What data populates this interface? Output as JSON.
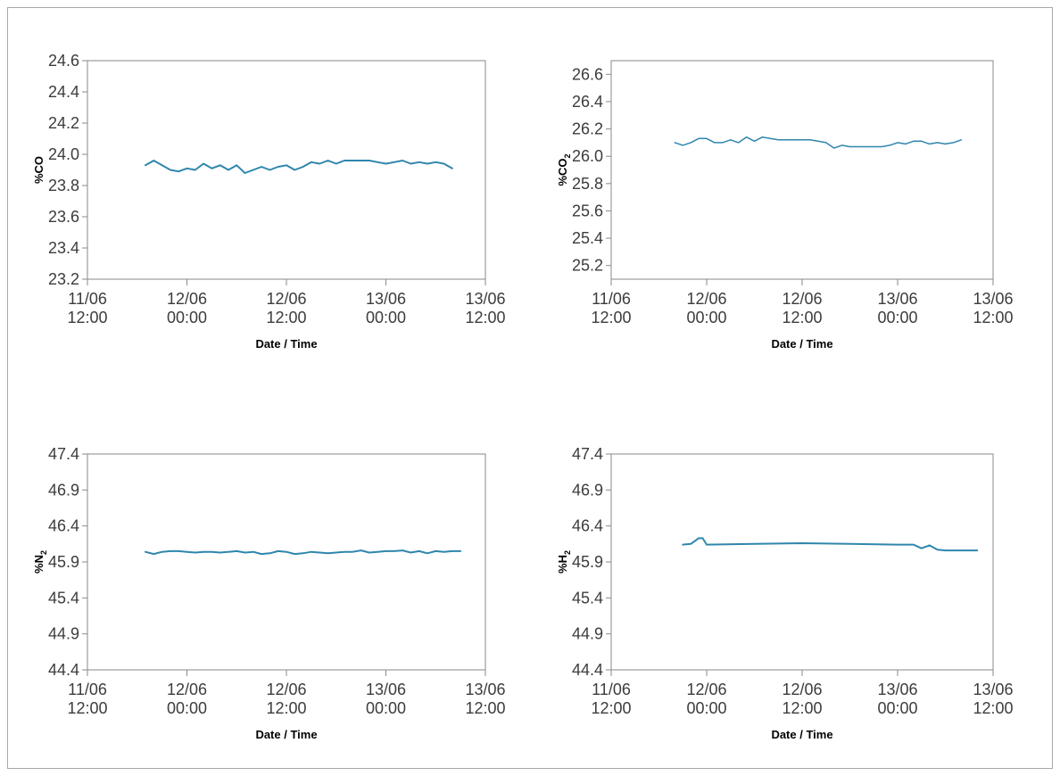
{
  "colors": {
    "line": "#2f86ad",
    "axis": "#8a8a8a",
    "frame": "#a8a8a8",
    "text": "#3c3c3c"
  },
  "chart_data": [
    {
      "type": "line",
      "xlabel": "Date / Time",
      "ylabel": {
        "base": "%CO",
        "sub": ""
      },
      "xlim": [
        "11/06 12:00",
        "13/06 12:00"
      ],
      "xticks": [
        {
          "date": "11/06",
          "time": "12:00"
        },
        {
          "date": "12/06",
          "time": "00:00"
        },
        {
          "date": "12/06",
          "time": "12:00"
        },
        {
          "date": "13/06",
          "time": "00:00"
        },
        {
          "date": "13/06",
          "time": "12:00"
        }
      ],
      "ylim": [
        23.2,
        24.6
      ],
      "yticks": [
        "23.2",
        "23.4",
        "23.6",
        "23.8",
        "24.0",
        "24.2",
        "24.4",
        "24.6"
      ],
      "stroke": 2,
      "series": [
        {
          "x": [
            "11/06 19:00",
            "11/06 20:00",
            "11/06 21:00",
            "11/06 22:00",
            "11/06 23:00",
            "12/06 00:00",
            "12/06 01:00",
            "12/06 02:00",
            "12/06 03:00",
            "12/06 04:00",
            "12/06 05:00",
            "12/06 06:00",
            "12/06 07:00",
            "12/06 08:00",
            "12/06 09:00",
            "12/06 10:00",
            "12/06 11:00",
            "12/06 12:00",
            "12/06 13:00",
            "12/06 14:00",
            "12/06 15:00",
            "12/06 16:00",
            "12/06 17:00",
            "12/06 18:00",
            "12/06 19:00",
            "12/06 20:00",
            "12/06 21:00",
            "12/06 22:00",
            "12/06 23:00",
            "13/06 00:00",
            "13/06 01:00",
            "13/06 02:00",
            "13/06 03:00",
            "13/06 04:00",
            "13/06 05:00",
            "13/06 06:00",
            "13/06 07:00",
            "13/06 08:00"
          ],
          "y": [
            23.93,
            23.96,
            23.93,
            23.9,
            23.89,
            23.91,
            23.9,
            23.94,
            23.91,
            23.93,
            23.9,
            23.93,
            23.88,
            23.9,
            23.92,
            23.9,
            23.92,
            23.93,
            23.9,
            23.92,
            23.95,
            23.94,
            23.96,
            23.94,
            23.96,
            23.96,
            23.96,
            23.96,
            23.95,
            23.94,
            23.95,
            23.96,
            23.94,
            23.95,
            23.94,
            23.95,
            23.94,
            23.91
          ]
        }
      ]
    },
    {
      "type": "line",
      "xlabel": "Date / Time",
      "ylabel": {
        "base": "%CO",
        "sub": "2"
      },
      "xlim": [
        "11/06 12:00",
        "13/06 12:00"
      ],
      "xticks": [
        {
          "date": "11/06",
          "time": "12:00"
        },
        {
          "date": "12/06",
          "time": "00:00"
        },
        {
          "date": "12/06",
          "time": "12:00"
        },
        {
          "date": "13/06",
          "time": "00:00"
        },
        {
          "date": "13/06",
          "time": "12:00"
        }
      ],
      "ylim": [
        25.1,
        26.7
      ],
      "yticks": [
        "25.2",
        "25.4",
        "25.6",
        "25.8",
        "26.0",
        "26.2",
        "26.4",
        "26.6"
      ],
      "stroke": 1.5,
      "series": [
        {
          "x": [
            "11/06 20:00",
            "11/06 21:00",
            "11/06 22:00",
            "11/06 23:00",
            "12/06 00:00",
            "12/06 01:00",
            "12/06 02:00",
            "12/06 03:00",
            "12/06 04:00",
            "12/06 05:00",
            "12/06 06:00",
            "12/06 07:00",
            "12/06 08:00",
            "12/06 09:00",
            "12/06 10:00",
            "12/06 11:00",
            "12/06 12:00",
            "12/06 13:00",
            "12/06 14:00",
            "12/06 15:00",
            "12/06 16:00",
            "12/06 17:00",
            "12/06 18:00",
            "12/06 19:00",
            "12/06 20:00",
            "12/06 21:00",
            "12/06 22:00",
            "12/06 23:00",
            "13/06 00:00",
            "13/06 01:00",
            "13/06 02:00",
            "13/06 03:00",
            "13/06 04:00",
            "13/06 05:00",
            "13/06 06:00",
            "13/06 07:00",
            "13/06 08:00"
          ],
          "y": [
            26.1,
            26.08,
            26.1,
            26.13,
            26.13,
            26.1,
            26.1,
            26.12,
            26.1,
            26.14,
            26.11,
            26.14,
            26.13,
            26.12,
            26.12,
            26.12,
            26.12,
            26.12,
            26.11,
            26.1,
            26.06,
            26.08,
            26.07,
            26.07,
            26.07,
            26.07,
            26.07,
            26.08,
            26.1,
            26.09,
            26.11,
            26.11,
            26.09,
            26.1,
            26.09,
            26.1,
            26.12
          ]
        }
      ]
    },
    {
      "type": "line",
      "xlabel": "Date / Time",
      "ylabel": {
        "base": "%N",
        "sub": "2"
      },
      "xlim": [
        "11/06 12:00",
        "13/06 12:00"
      ],
      "xticks": [
        {
          "date": "11/06",
          "time": "12:00"
        },
        {
          "date": "12/06",
          "time": "00:00"
        },
        {
          "date": "12/06",
          "time": "12:00"
        },
        {
          "date": "13/06",
          "time": "00:00"
        },
        {
          "date": "13/06",
          "time": "12:00"
        }
      ],
      "ylim": [
        44.4,
        47.4
      ],
      "yticks": [
        "44.4",
        "44.9",
        "45.4",
        "45.9",
        "46.4",
        "46.9",
        "47.4"
      ],
      "stroke": 2,
      "series": [
        {
          "x": [
            "11/06 19:00",
            "11/06 20:00",
            "11/06 21:00",
            "11/06 22:00",
            "11/06 23:00",
            "12/06 00:00",
            "12/06 01:00",
            "12/06 02:00",
            "12/06 03:00",
            "12/06 04:00",
            "12/06 05:00",
            "12/06 06:00",
            "12/06 07:00",
            "12/06 08:00",
            "12/06 09:00",
            "12/06 10:00",
            "12/06 11:00",
            "12/06 12:00",
            "12/06 13:00",
            "12/06 14:00",
            "12/06 15:00",
            "12/06 16:00",
            "12/06 17:00",
            "12/06 18:00",
            "12/06 19:00",
            "12/06 20:00",
            "12/06 21:00",
            "12/06 22:00",
            "12/06 23:00",
            "13/06 00:00",
            "13/06 01:00",
            "13/06 02:00",
            "13/06 03:00",
            "13/06 04:00",
            "13/06 05:00",
            "13/06 06:00",
            "13/06 07:00",
            "13/06 08:00",
            "13/06 09:00"
          ],
          "y": [
            46.04,
            46.01,
            46.04,
            46.05,
            46.05,
            46.04,
            46.03,
            46.04,
            46.04,
            46.03,
            46.04,
            46.05,
            46.03,
            46.04,
            46.01,
            46.02,
            46.05,
            46.04,
            46.01,
            46.02,
            46.04,
            46.03,
            46.02,
            46.03,
            46.04,
            46.04,
            46.06,
            46.03,
            46.04,
            46.05,
            46.05,
            46.06,
            46.03,
            46.05,
            46.02,
            46.05,
            46.04,
            46.05,
            46.05
          ]
        }
      ]
    },
    {
      "type": "line",
      "xlabel": "Date / Time",
      "ylabel": {
        "base": "%H",
        "sub": "2"
      },
      "xlim": [
        "11/06 12:00",
        "13/06 12:00"
      ],
      "xticks": [
        {
          "date": "11/06",
          "time": "12:00"
        },
        {
          "date": "12/06",
          "time": "00:00"
        },
        {
          "date": "12/06",
          "time": "12:00"
        },
        {
          "date": "13/06",
          "time": "00:00"
        },
        {
          "date": "13/06",
          "time": "12:00"
        }
      ],
      "ylim": [
        44.4,
        47.4
      ],
      "yticks": [
        "44.4",
        "44.9",
        "45.4",
        "45.9",
        "46.4",
        "46.9",
        "47.4"
      ],
      "stroke": 2,
      "series": [
        {
          "x": [
            "11/06 21:00",
            "11/06 22:00",
            "11/06 23:00",
            "11/06 23:30",
            "12/06 00:00",
            "12/06 06:00",
            "12/06 12:00",
            "12/06 18:00",
            "13/06 00:00",
            "13/06 02:00",
            "13/06 03:00",
            "13/06 04:00",
            "13/06 05:00",
            "13/06 06:00",
            "13/06 08:00",
            "13/06 10:00"
          ],
          "y": [
            46.14,
            46.15,
            46.23,
            46.23,
            46.14,
            46.15,
            46.16,
            46.15,
            46.14,
            46.14,
            46.09,
            46.13,
            46.07,
            46.06,
            46.06,
            46.06
          ]
        }
      ]
    }
  ]
}
